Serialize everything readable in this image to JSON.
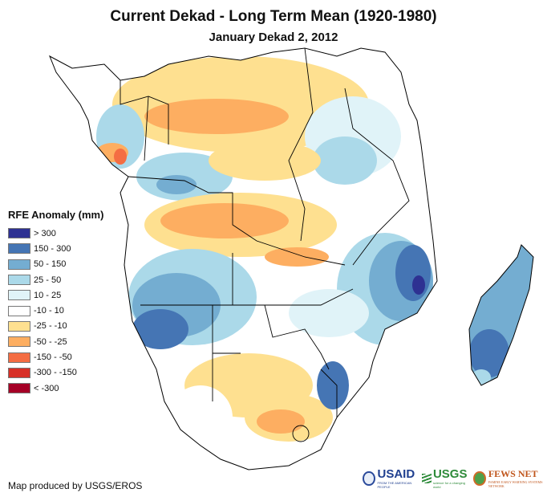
{
  "header": {
    "title": "Current Dekad - Long Term Mean (1920-1980)",
    "subtitle": "January Dekad 2, 2012"
  },
  "legend": {
    "title": "RFE Anomaly (mm)",
    "items": [
      {
        "label": "> 300",
        "color": "#2e3192"
      },
      {
        "label": "150 - 300",
        "color": "#4575b4"
      },
      {
        "label": "50 - 150",
        "color": "#74add1"
      },
      {
        "label": "25 - 50",
        "color": "#abd9e9"
      },
      {
        "label": "10 - 25",
        "color": "#e0f3f8"
      },
      {
        "label": "-10 - 10",
        "color": "#ffffff"
      },
      {
        "label": "-25 - -10",
        "color": "#fee090"
      },
      {
        "label": "-50 - -25",
        "color": "#fdae61"
      },
      {
        "label": "-150 - -50",
        "color": "#f46d43"
      },
      {
        "label": "-300 - -150",
        "color": "#d73027"
      },
      {
        "label": "< -300",
        "color": "#a50026"
      }
    ]
  },
  "footer": {
    "credit": "Map produced by USGS/EROS",
    "logos": [
      {
        "name": "USAID",
        "tagline": "FROM THE AMERICAN PEOPLE"
      },
      {
        "name": "USGS",
        "tagline": "science for a changing world"
      },
      {
        "name": "FEWS NET",
        "tagline": "FAMINE EARLY WARNING SYSTEMS NETWORK"
      }
    ]
  }
}
